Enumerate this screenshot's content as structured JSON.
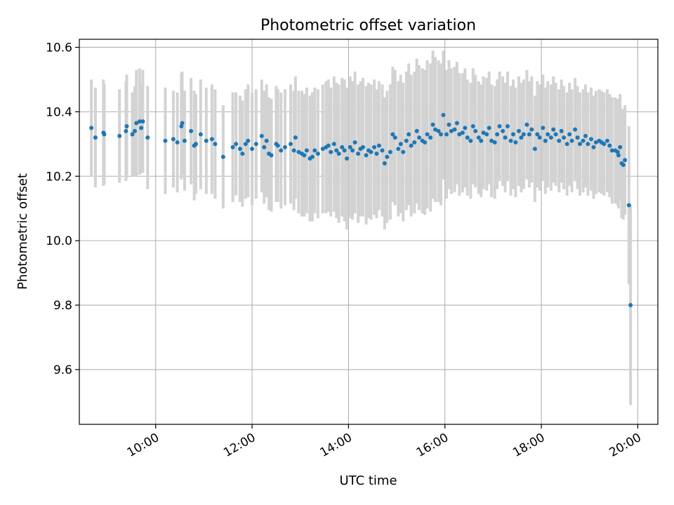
{
  "chart_data": {
    "type": "scatter",
    "title": "Photometric offset variation",
    "xlabel": "UTC time",
    "ylabel": "Photometric offset",
    "grid": true,
    "xlim": [
      "08:25",
      "20:25"
    ],
    "ylim": [
      9.43,
      10.625
    ],
    "x_ticks": [
      "10:00",
      "12:00",
      "14:00",
      "16:00",
      "18:00",
      "20:00"
    ],
    "y_ticks": [
      "9.6",
      "9.8",
      "10.0",
      "10.2",
      "10.4",
      "10.6"
    ],
    "colors": {
      "marker": "#1f77b4",
      "errorbar": "#d3d3d3",
      "grid": "#b0b0b0"
    },
    "series": [
      {
        "x": [
          "08:40",
          "08:45",
          "08:55",
          "08:56",
          "09:15",
          "09:23",
          "09:24",
          "09:31",
          "09:34",
          "09:36",
          "09:40",
          "09:42",
          "09:44",
          "09:50",
          "10:12",
          "10:22",
          "10:27",
          "10:32",
          "10:33",
          "10:36",
          "10:44",
          "10:48",
          "10:50",
          "10:56",
          "11:03",
          "11:10",
          "11:14",
          "11:24",
          "11:36",
          "11:40",
          "11:45",
          "11:48",
          "11:52",
          "11:55",
          "12:00",
          "12:05",
          "12:12",
          "12:15",
          "12:18",
          "12:21",
          "12:24",
          "12:30",
          "12:32",
          "12:36",
          "12:41",
          "12:48",
          "12:52",
          "12:54",
          "12:58",
          "13:02",
          "13:05",
          "13:08",
          "13:12",
          "13:15",
          "13:18",
          "13:22",
          "13:28",
          "13:32",
          "13:35",
          "13:38",
          "13:42",
          "13:45",
          "13:48",
          "13:52",
          "13:55",
          "13:58",
          "14:02",
          "14:05",
          "14:08",
          "14:12",
          "14:15",
          "14:18",
          "14:22",
          "14:25",
          "14:28",
          "14:32",
          "14:35",
          "14:38",
          "14:42",
          "14:45",
          "14:48",
          "14:52",
          "14:55",
          "14:58",
          "15:02",
          "15:05",
          "15:08",
          "15:12",
          "15:15",
          "15:18",
          "15:22",
          "15:25",
          "15:28",
          "15:32",
          "15:35",
          "15:38",
          "15:42",
          "15:45",
          "15:48",
          "15:52",
          "15:55",
          "15:58",
          "16:02",
          "16:05",
          "16:08",
          "16:12",
          "16:15",
          "16:18",
          "16:22",
          "16:25",
          "16:28",
          "16:32",
          "16:35",
          "16:38",
          "16:42",
          "16:45",
          "16:48",
          "16:52",
          "16:55",
          "16:58",
          "17:02",
          "17:05",
          "17:08",
          "17:12",
          "17:15",
          "17:18",
          "17:22",
          "17:25",
          "17:28",
          "17:32",
          "17:35",
          "17:38",
          "17:42",
          "17:45",
          "17:48",
          "17:52",
          "17:55",
          "17:58",
          "18:02",
          "18:05",
          "18:08",
          "18:12",
          "18:15",
          "18:18",
          "18:22",
          "18:25",
          "18:28",
          "18:32",
          "18:35",
          "18:38",
          "18:42",
          "18:45",
          "18:48",
          "18:52",
          "18:55",
          "18:58",
          "19:02",
          "19:05",
          "19:08",
          "19:12",
          "19:15",
          "19:18",
          "19:22",
          "19:25",
          "19:28",
          "19:32",
          "19:35",
          "19:36",
          "19:38",
          "19:40",
          "19:42",
          "19:44",
          "19:49",
          "19:51"
        ],
        "y": [
          10.35,
          10.32,
          10.335,
          10.33,
          10.325,
          10.34,
          10.355,
          10.33,
          10.34,
          10.365,
          10.37,
          10.35,
          10.37,
          10.32,
          10.31,
          10.315,
          10.305,
          10.355,
          10.365,
          10.31,
          10.34,
          10.295,
          10.3,
          10.33,
          10.31,
          10.315,
          10.3,
          10.26,
          10.29,
          10.3,
          10.285,
          10.27,
          10.3,
          10.31,
          10.285,
          10.3,
          10.325,
          10.29,
          10.31,
          10.27,
          10.265,
          10.3,
          10.295,
          10.28,
          10.29,
          10.3,
          10.28,
          10.32,
          10.275,
          10.27,
          10.265,
          10.28,
          10.255,
          10.26,
          10.28,
          10.27,
          10.285,
          10.29,
          10.295,
          10.275,
          10.3,
          10.28,
          10.27,
          10.29,
          10.28,
          10.255,
          10.29,
          10.28,
          10.305,
          10.27,
          10.285,
          10.29,
          10.265,
          10.28,
          10.275,
          10.29,
          10.27,
          10.295,
          10.28,
          10.24,
          10.26,
          10.275,
          10.33,
          10.32,
          10.285,
          10.3,
          10.275,
          10.31,
          10.33,
          10.295,
          10.305,
          10.34,
          10.32,
          10.31,
          10.305,
          10.33,
          10.32,
          10.36,
          10.345,
          10.34,
          10.33,
          10.39,
          10.33,
          10.36,
          10.34,
          10.345,
          10.365,
          10.33,
          10.335,
          10.35,
          10.32,
          10.31,
          10.355,
          10.34,
          10.32,
          10.31,
          10.335,
          10.33,
          10.35,
          10.31,
          10.305,
          10.33,
          10.355,
          10.34,
          10.32,
          10.355,
          10.31,
          10.33,
          10.305,
          10.34,
          10.32,
          10.33,
          10.36,
          10.33,
          10.345,
          10.285,
          10.33,
          10.32,
          10.35,
          10.31,
          10.33,
          10.32,
          10.345,
          10.33,
          10.31,
          10.34,
          10.32,
          10.3,
          10.33,
          10.31,
          10.345,
          10.32,
          10.3,
          10.31,
          10.325,
          10.3,
          10.315,
          10.29,
          10.305,
          10.31,
          10.305,
          10.3,
          10.31,
          10.295,
          10.28,
          10.28,
          10.275,
          10.265,
          10.29,
          10.24,
          10.235,
          10.25,
          10.11,
          9.8
        ],
        "err": [
          0.15,
          0.155,
          0.165,
          0.155,
          0.145,
          0.155,
          0.16,
          0.13,
          0.14,
          0.165,
          0.165,
          0.14,
          0.16,
          0.16,
          0.165,
          0.15,
          0.155,
          0.165,
          0.16,
          0.155,
          0.165,
          0.17,
          0.155,
          0.17,
          0.165,
          0.17,
          0.17,
          0.16,
          0.17,
          0.16,
          0.165,
          0.165,
          0.17,
          0.175,
          0.175,
          0.17,
          0.175,
          0.175,
          0.175,
          0.175,
          0.175,
          0.18,
          0.175,
          0.18,
          0.18,
          0.185,
          0.185,
          0.19,
          0.19,
          0.195,
          0.19,
          0.195,
          0.195,
          0.2,
          0.195,
          0.2,
          0.2,
          0.205,
          0.205,
          0.2,
          0.21,
          0.21,
          0.215,
          0.215,
          0.22,
          0.22,
          0.22,
          0.215,
          0.22,
          0.215,
          0.21,
          0.215,
          0.215,
          0.21,
          0.21,
          0.21,
          0.2,
          0.2,
          0.205,
          0.205,
          0.205,
          0.21,
          0.21,
          0.21,
          0.21,
          0.215,
          0.215,
          0.215,
          0.22,
          0.22,
          0.22,
          0.225,
          0.225,
          0.225,
          0.225,
          0.23,
          0.23,
          0.23,
          0.225,
          0.22,
          0.22,
          0.2,
          0.2,
          0.2,
          0.195,
          0.195,
          0.19,
          0.19,
          0.185,
          0.185,
          0.18,
          0.18,
          0.18,
          0.175,
          0.175,
          0.175,
          0.175,
          0.175,
          0.175,
          0.175,
          0.175,
          0.17,
          0.17,
          0.17,
          0.17,
          0.17,
          0.17,
          0.17,
          0.17,
          0.17,
          0.17,
          0.17,
          0.17,
          0.165,
          0.165,
          0.165,
          0.165,
          0.165,
          0.165,
          0.165,
          0.165,
          0.165,
          0.165,
          0.16,
          0.16,
          0.16,
          0.16,
          0.16,
          0.16,
          0.16,
          0.16,
          0.16,
          0.16,
          0.16,
          0.16,
          0.16,
          0.16,
          0.16,
          0.16,
          0.16,
          0.16,
          0.16,
          0.16,
          0.16,
          0.165,
          0.165,
          0.165,
          0.165,
          0.165,
          0.17,
          0.17,
          0.17,
          0.245,
          0.31
        ]
      }
    ]
  }
}
